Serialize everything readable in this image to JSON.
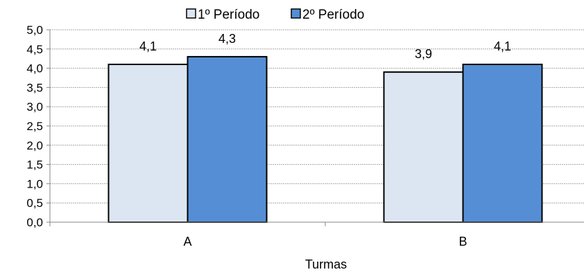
{
  "chart_data": {
    "type": "bar",
    "title": "",
    "xlabel": "Turmas",
    "ylabel": "",
    "categories": [
      "A",
      "B"
    ],
    "series": [
      {
        "name": "1º Período",
        "values": [
          4.1,
          3.9
        ],
        "color": "#dce6f2"
      },
      {
        "name": "2º Período",
        "values": [
          4.3,
          4.1
        ],
        "color": "#558ed5"
      }
    ],
    "data_labels": [
      [
        "4,1",
        "3,9"
      ],
      [
        "4,3",
        "4,1"
      ]
    ],
    "ylim": [
      0,
      5
    ],
    "yticks": [
      0,
      0.5,
      1,
      1.5,
      2,
      2.5,
      3,
      3.5,
      4,
      4.5,
      5
    ],
    "ytick_labels": [
      "0,0",
      "0,5",
      "1,0",
      "1,5",
      "2,0",
      "2,5",
      "3,0",
      "3,5",
      "4,0",
      "4,5",
      "5,0"
    ],
    "grid": true,
    "legend_position": "top-center"
  }
}
